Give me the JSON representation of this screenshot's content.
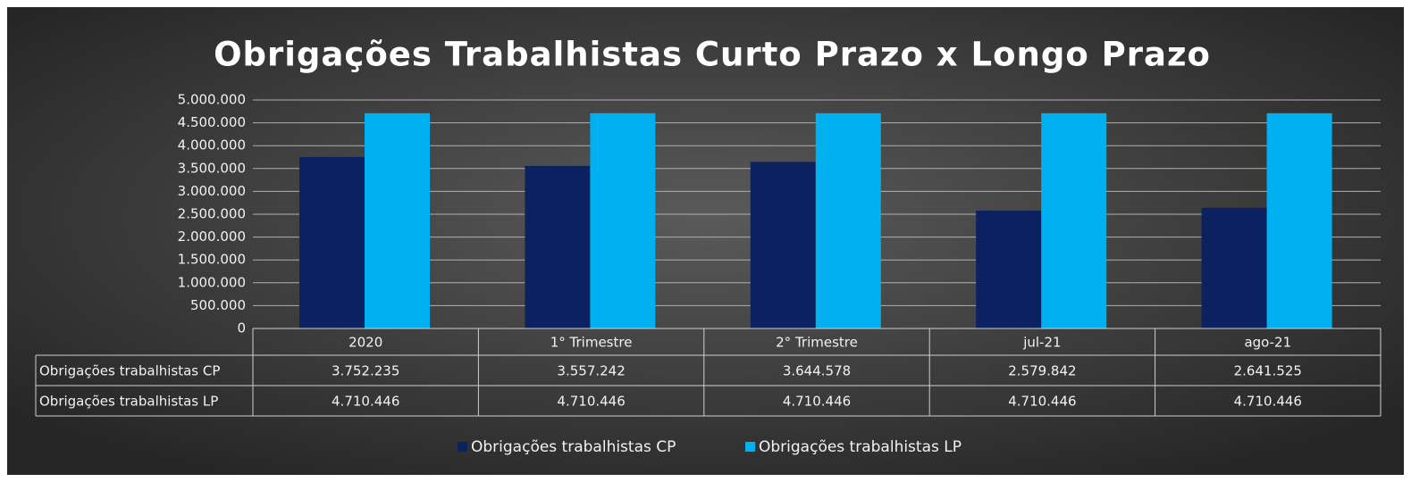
{
  "chart_data": {
    "type": "bar",
    "title": "Obrigações Trabalhistas Curto Prazo x Longo Prazo",
    "categories": [
      "2020",
      "1° Trimestre",
      "2° Trimestre",
      "jul-21",
      "ago-21"
    ],
    "series": [
      {
        "name": "Obrigações trabalhistas CP",
        "color": "#0c2160",
        "values": [
          3752235,
          3557242,
          3644578,
          2579842,
          2641525
        ],
        "value_labels": [
          "3.752.235",
          "3.557.242",
          "3.644.578",
          "2.579.842",
          "2.641.525"
        ]
      },
      {
        "name": "Obrigações trabalhistas LP",
        "color": "#00b0f0",
        "values": [
          4710446,
          4710446,
          4710446,
          4710446,
          4710446
        ],
        "value_labels": [
          "4.710.446",
          "4.710.446",
          "4.710.446",
          "4.710.446",
          "4.710.446"
        ]
      }
    ],
    "ylim": [
      0,
      5000000
    ],
    "yticks": [
      0,
      {
        "value": 500000,
        "label": "500.000"
      },
      {
        "value": 1000000,
        "label": "1.000.000"
      },
      {
        "value": 1500000,
        "label": "1.500.000"
      },
      {
        "value": 2000000,
        "label": "2.000.000"
      },
      {
        "value": 2500000,
        "label": "2.500.000"
      },
      {
        "value": 3000000,
        "label": "3.000.000"
      },
      {
        "value": 3500000,
        "label": "3.500.000"
      },
      {
        "value": 4000000,
        "label": "4.000.000"
      },
      {
        "value": 4500000,
        "label": "4.500.000"
      },
      {
        "value": 5000000,
        "label": "5.000.000"
      }
    ],
    "grid": true
  }
}
